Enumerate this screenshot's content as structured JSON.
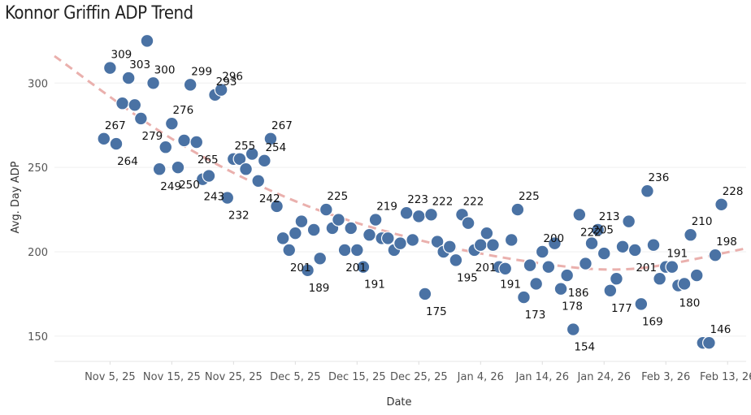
{
  "chart_data": {
    "type": "scatter",
    "title": "Konnor Griffin ADP Trend",
    "xlabel": "Date",
    "ylabel": "Avg. Day ADP",
    "x_tick_labels": [
      "Nov 5, 25",
      "Nov 15, 25",
      "Nov 25, 25",
      "Dec 5, 25",
      "Dec 15, 25",
      "Dec 25, 25",
      "Jan 4, 26",
      "Jan 14, 26",
      "Jan 24, 26",
      "Feb 3, 26",
      "Feb 13, 26"
    ],
    "x_tick_dates": [
      "2025-11-05",
      "2025-11-15",
      "2025-11-25",
      "2025-12-05",
      "2025-12-15",
      "2025-12-25",
      "2026-01-04",
      "2026-01-14",
      "2026-01-24",
      "2026-02-03",
      "2026-02-13"
    ],
    "xlim": [
      "2025-10-27",
      "2026-02-16"
    ],
    "ylim": [
      135,
      330
    ],
    "y_ticks": [
      150,
      200,
      250,
      300
    ],
    "grid": true,
    "legend": "none",
    "dot_color": "#4a72a4",
    "trend_color": "#eab0ad",
    "trend": {
      "style": "dashed",
      "points": [
        [
          "2025-10-27",
          316
        ],
        [
          "2025-11-15",
          267
        ],
        [
          "2025-12-05",
          230
        ],
        [
          "2025-12-25",
          207
        ],
        [
          "2026-01-14",
          193
        ],
        [
          "2026-01-29",
          190
        ],
        [
          "2026-02-16",
          202
        ]
      ]
    },
    "points": [
      {
        "x": "2025-11-04",
        "y": 267,
        "label": "267"
      },
      {
        "x": "2025-11-05",
        "y": 309,
        "label": "309"
      },
      {
        "x": "2025-11-06",
        "y": 264,
        "label": "264"
      },
      {
        "x": "2025-11-07",
        "y": 288
      },
      {
        "x": "2025-11-08",
        "y": 303,
        "label": "303"
      },
      {
        "x": "2025-11-09",
        "y": 287
      },
      {
        "x": "2025-11-10",
        "y": 279,
        "label": "279"
      },
      {
        "x": "2025-11-11",
        "y": 325
      },
      {
        "x": "2025-11-12",
        "y": 300,
        "label": "300"
      },
      {
        "x": "2025-11-13",
        "y": 249,
        "label": "249"
      },
      {
        "x": "2025-11-14",
        "y": 262
      },
      {
        "x": "2025-11-15",
        "y": 276,
        "label": "276"
      },
      {
        "x": "2025-11-16",
        "y": 250,
        "label": "250"
      },
      {
        "x": "2025-11-17",
        "y": 266
      },
      {
        "x": "2025-11-18",
        "y": 299,
        "label": "299"
      },
      {
        "x": "2025-11-19",
        "y": 265,
        "label": "265"
      },
      {
        "x": "2025-11-20",
        "y": 243,
        "label": "243"
      },
      {
        "x": "2025-11-21",
        "y": 245
      },
      {
        "x": "2025-11-22",
        "y": 293,
        "label": "293"
      },
      {
        "x": "2025-11-23",
        "y": 296,
        "label": "296"
      },
      {
        "x": "2025-11-24",
        "y": 232,
        "label": "232"
      },
      {
        "x": "2025-11-25",
        "y": 255,
        "label": "255"
      },
      {
        "x": "2025-11-26",
        "y": 255
      },
      {
        "x": "2025-11-27",
        "y": 249
      },
      {
        "x": "2025-11-28",
        "y": 258
      },
      {
        "x": "2025-11-29",
        "y": 242,
        "label": "242"
      },
      {
        "x": "2025-11-30",
        "y": 254,
        "label": "254"
      },
      {
        "x": "2025-12-01",
        "y": 267,
        "label": "267"
      },
      {
        "x": "2025-12-02",
        "y": 227
      },
      {
        "x": "2025-12-03",
        "y": 208
      },
      {
        "x": "2025-12-04",
        "y": 201,
        "label": "201"
      },
      {
        "x": "2025-12-05",
        "y": 211
      },
      {
        "x": "2025-12-06",
        "y": 218
      },
      {
        "x": "2025-12-07",
        "y": 189,
        "label": "189"
      },
      {
        "x": "2025-12-08",
        "y": 213
      },
      {
        "x": "2025-12-09",
        "y": 196
      },
      {
        "x": "2025-12-10",
        "y": 225,
        "label": "225"
      },
      {
        "x": "2025-12-11",
        "y": 214
      },
      {
        "x": "2025-12-12",
        "y": 219
      },
      {
        "x": "2025-12-13",
        "y": 201,
        "label": "201"
      },
      {
        "x": "2025-12-14",
        "y": 214
      },
      {
        "x": "2025-12-15",
        "y": 201
      },
      {
        "x": "2025-12-16",
        "y": 191,
        "label": "191"
      },
      {
        "x": "2025-12-17",
        "y": 210
      },
      {
        "x": "2025-12-18",
        "y": 219,
        "label": "219"
      },
      {
        "x": "2025-12-19",
        "y": 208
      },
      {
        "x": "2025-12-20",
        "y": 208
      },
      {
        "x": "2025-12-21",
        "y": 201
      },
      {
        "x": "2025-12-22",
        "y": 205
      },
      {
        "x": "2025-12-23",
        "y": 223,
        "label": "223"
      },
      {
        "x": "2025-12-24",
        "y": 207
      },
      {
        "x": "2025-12-25",
        "y": 221
      },
      {
        "x": "2025-12-26",
        "y": 175,
        "label": "175"
      },
      {
        "x": "2025-12-27",
        "y": 222,
        "label": "222"
      },
      {
        "x": "2025-12-28",
        "y": 206
      },
      {
        "x": "2025-12-29",
        "y": 200
      },
      {
        "x": "2025-12-30",
        "y": 203
      },
      {
        "x": "2025-12-31",
        "y": 195,
        "label": "195"
      },
      {
        "x": "2026-01-01",
        "y": 222,
        "label": "222"
      },
      {
        "x": "2026-01-02",
        "y": 217
      },
      {
        "x": "2026-01-03",
        "y": 201,
        "label": "201"
      },
      {
        "x": "2026-01-04",
        "y": 204
      },
      {
        "x": "2026-01-05",
        "y": 211
      },
      {
        "x": "2026-01-06",
        "y": 204
      },
      {
        "x": "2026-01-07",
        "y": 191,
        "label": "191"
      },
      {
        "x": "2026-01-08",
        "y": 190
      },
      {
        "x": "2026-01-09",
        "y": 207
      },
      {
        "x": "2026-01-10",
        "y": 225,
        "label": "225"
      },
      {
        "x": "2026-01-11",
        "y": 173,
        "label": "173"
      },
      {
        "x": "2026-01-12",
        "y": 192
      },
      {
        "x": "2026-01-13",
        "y": 181
      },
      {
        "x": "2026-01-14",
        "y": 200,
        "label": "200"
      },
      {
        "x": "2026-01-15",
        "y": 191
      },
      {
        "x": "2026-01-16",
        "y": 205
      },
      {
        "x": "2026-01-17",
        "y": 178,
        "label": "178"
      },
      {
        "x": "2026-01-18",
        "y": 186,
        "label": "186"
      },
      {
        "x": "2026-01-19",
        "y": 154,
        "label": "154"
      },
      {
        "x": "2026-01-20",
        "y": 222,
        "label": "222"
      },
      {
        "x": "2026-01-21",
        "y": 193
      },
      {
        "x": "2026-01-22",
        "y": 205,
        "label": "205"
      },
      {
        "x": "2026-01-23",
        "y": 213,
        "label": "213"
      },
      {
        "x": "2026-01-24",
        "y": 199
      },
      {
        "x": "2026-01-25",
        "y": 177,
        "label": "177"
      },
      {
        "x": "2026-01-26",
        "y": 184
      },
      {
        "x": "2026-01-27",
        "y": 203
      },
      {
        "x": "2026-01-28",
        "y": 218
      },
      {
        "x": "2026-01-29",
        "y": 201,
        "label": "201"
      },
      {
        "x": "2026-01-30",
        "y": 169,
        "label": "169"
      },
      {
        "x": "2026-01-31",
        "y": 236,
        "label": "236"
      },
      {
        "x": "2026-02-01",
        "y": 204
      },
      {
        "x": "2026-02-02",
        "y": 184
      },
      {
        "x": "2026-02-03",
        "y": 191,
        "label": "191"
      },
      {
        "x": "2026-02-04",
        "y": 191
      },
      {
        "x": "2026-02-05",
        "y": 180,
        "label": "180"
      },
      {
        "x": "2026-02-06",
        "y": 181
      },
      {
        "x": "2026-02-07",
        "y": 210,
        "label": "210"
      },
      {
        "x": "2026-02-08",
        "y": 186
      },
      {
        "x": "2026-02-09",
        "y": 146
      },
      {
        "x": "2026-02-10",
        "y": 146,
        "label": "146"
      },
      {
        "x": "2026-02-11",
        "y": 198,
        "label": "198"
      },
      {
        "x": "2026-02-12",
        "y": 228,
        "label": "228"
      }
    ]
  }
}
